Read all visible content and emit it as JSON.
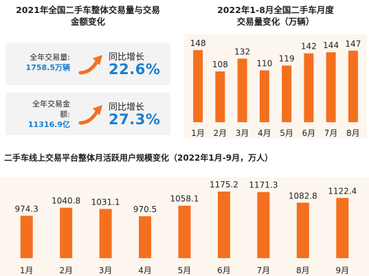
{
  "left_panel": {
    "title_line1": "2021年全国二手车整体交易量与交易",
    "title_line2": "金额变化",
    "volume": {
      "label": "全年交易量:",
      "value": "1758.5万辆",
      "yoy_label": "同比增长",
      "yoy_value": "22.6%"
    },
    "amount": {
      "label_line1": "全年交易金",
      "label_line2": "额:",
      "value": "11316.9亿",
      "yoy_label": "同比增长",
      "yoy_value": "27.3%"
    }
  },
  "colors": {
    "bar": "#f4701f",
    "accent_blue": "#1a7fd0",
    "panel_bg": "#fcf6ee",
    "stat_bg": "#f3f3f3"
  },
  "chart_data": [
    {
      "type": "bar",
      "title_line1": "2022年1-8月全国二手车月度",
      "title_line2": "交易量变化（万辆）",
      "categories": [
        "1月",
        "2月",
        "3月",
        "4月",
        "5月",
        "6月",
        "7月",
        "8月"
      ],
      "values": [
        148,
        108,
        132,
        110,
        119,
        142,
        144,
        147
      ],
      "value_labels": [
        "148",
        "108",
        "132",
        "110",
        "119",
        "142",
        "144",
        "147"
      ],
      "grid": false,
      "legend": "none"
    },
    {
      "type": "bar",
      "title": "二手车线上交易平台整体月活跃用户规模变化（2022年1月-9月，万人）",
      "categories": [
        "1月",
        "2月",
        "3月",
        "4月",
        "5月",
        "6月",
        "7月",
        "8月",
        "9月"
      ],
      "values": [
        974.3,
        1040.8,
        1031.1,
        970.5,
        1058.1,
        1175.2,
        1171.3,
        1082.8,
        1122.4
      ],
      "value_labels": [
        "974.3",
        "1040.8",
        "1031.1",
        "970.5",
        "1058.1",
        "1175.2",
        "1171.3",
        "1082.8",
        "1122.4"
      ],
      "grid": false,
      "legend": "none"
    }
  ]
}
